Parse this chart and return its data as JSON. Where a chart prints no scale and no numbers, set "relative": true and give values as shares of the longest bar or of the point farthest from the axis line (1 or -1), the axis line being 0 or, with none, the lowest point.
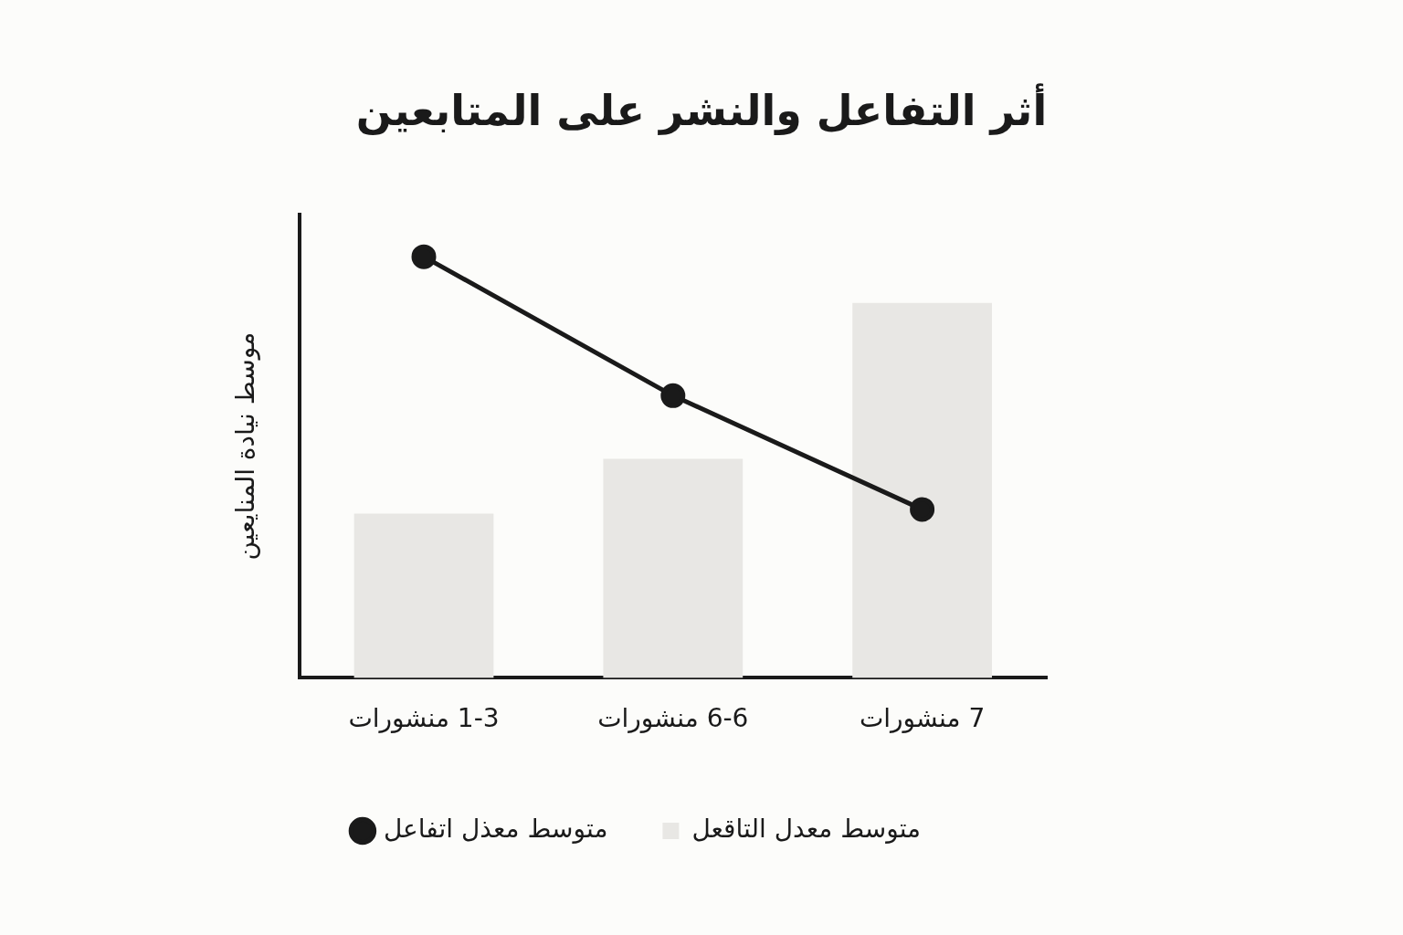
{
  "chart_data": {
    "type": "bar",
    "title": "أثر التفاعل والنشر على المتابعين",
    "ylabel": "موسط نيادة المنايعين",
    "categories": [
      "1-3 منشورات",
      "6-6 منشورات",
      "7 منشورات"
    ],
    "relative": true,
    "legend": "bottom",
    "grid": false,
    "marker": "circle",
    "series": [
      {
        "name": "متوسط معدل التاقعل",
        "color": "#e8e7e4",
        "values": [
          0.39,
          0.52,
          0.89
        ]
      },
      {
        "name": "متوسط معذل اتفاعل",
        "type": "line",
        "color": "#1a1a1a",
        "values": [
          1,
          0.67,
          0.4
        ]
      }
    ]
  }
}
